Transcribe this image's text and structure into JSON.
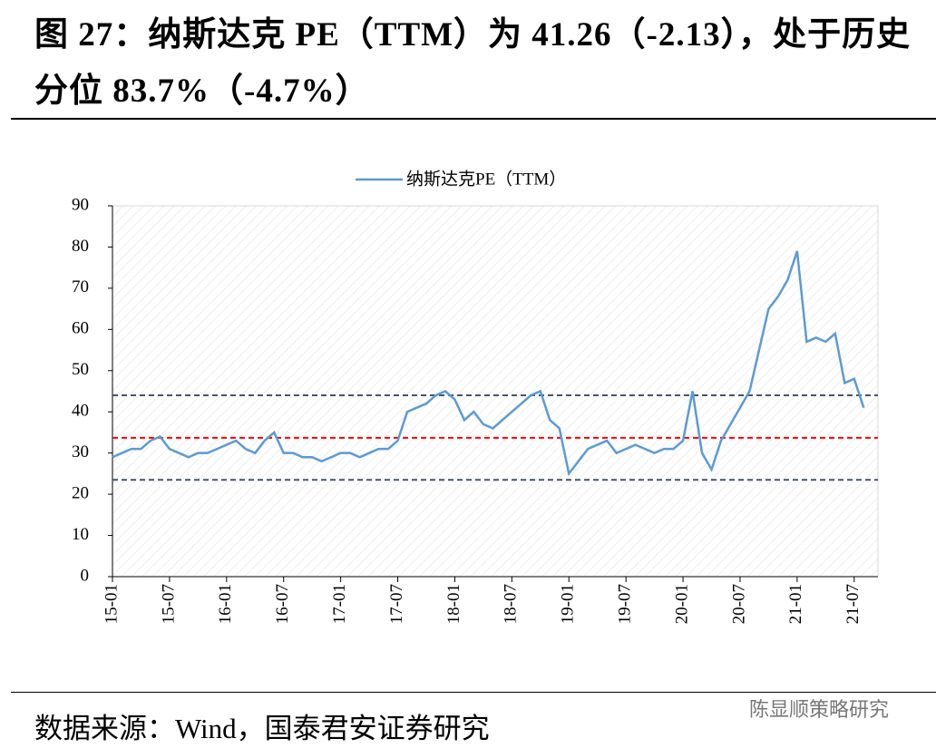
{
  "chart_data": {
    "type": "line",
    "title": "图 27：纳斯达克 PE（TTM）为 41.26（-2.13），处于历史分位 83.7%（-4.7%）",
    "source": "数据来源：Wind，国泰君安证券研究",
    "watermark": "陈显顺策略研究",
    "categories": [
      "15-01",
      null,
      null,
      null,
      null,
      null,
      "15-07",
      null,
      null,
      null,
      null,
      null,
      "16-01",
      null,
      null,
      null,
      null,
      null,
      "16-07",
      null,
      null,
      null,
      null,
      null,
      "17-01",
      null,
      null,
      null,
      null,
      null,
      "17-07",
      null,
      null,
      null,
      null,
      null,
      "18-01",
      null,
      null,
      null,
      null,
      null,
      "18-07",
      null,
      null,
      null,
      null,
      null,
      "19-01",
      null,
      null,
      null,
      null,
      null,
      "19-07",
      null,
      null,
      null,
      null,
      null,
      "20-01",
      null,
      null,
      null,
      null,
      null,
      "20-07",
      null,
      null,
      null,
      null,
      null,
      "21-01",
      null,
      null,
      null,
      null,
      null,
      "21-07",
      null
    ],
    "series": [
      {
        "name": "纳斯达克PE（TTM）",
        "color": "#5b9bd5",
        "values": [
          29,
          30,
          31,
          31,
          33,
          34,
          31,
          30,
          29,
          30,
          30,
          31,
          32,
          33,
          31,
          30,
          33,
          35,
          30,
          30,
          29,
          29,
          28,
          29,
          30,
          30,
          29,
          30,
          31,
          31,
          33,
          40,
          41,
          42,
          44,
          45,
          43,
          38,
          40,
          37,
          36,
          38,
          40,
          42,
          44,
          45,
          38,
          36,
          25,
          28,
          31,
          32,
          33,
          30,
          31,
          32,
          31,
          30,
          31,
          31,
          33,
          45,
          30,
          26,
          33,
          37,
          41,
          45,
          55,
          65,
          68,
          72,
          79,
          57,
          58,
          57,
          59,
          47,
          48,
          41
        ]
      }
    ],
    "reference_lines": [
      {
        "value": 44,
        "color": "#44546a"
      },
      {
        "value": 33.7,
        "color": "#ff0000"
      },
      {
        "value": 23.5,
        "color": "#44546a"
      }
    ],
    "ylim": [
      0,
      90
    ],
    "yticks": [
      0,
      10,
      20,
      30,
      40,
      50,
      60,
      70,
      80,
      90
    ],
    "legend": "top"
  }
}
